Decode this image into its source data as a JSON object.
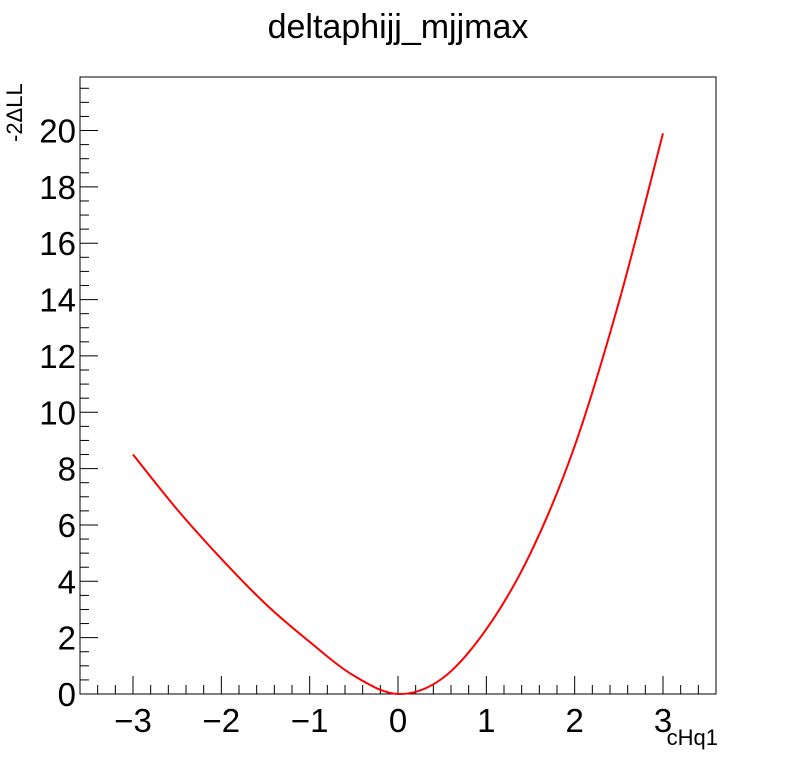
{
  "chart_data": {
    "type": "line",
    "title": "deltaphijj_mjjmax",
    "xlabel": "cHq1",
    "ylabel": "-2ΔLL",
    "xlim": [
      -3.6,
      3.6
    ],
    "ylim": [
      0,
      21.9
    ],
    "x_ticks": [
      -3,
      -2,
      -1,
      0,
      1,
      2,
      3
    ],
    "x_tick_labels": [
      "−3",
      "−2",
      "−1",
      "0",
      "1",
      "2",
      "3"
    ],
    "y_ticks": [
      0,
      2,
      4,
      6,
      8,
      10,
      12,
      14,
      16,
      18,
      20
    ],
    "y_tick_labels": [
      "0",
      "2",
      "4",
      "6",
      "8",
      "10",
      "12",
      "14",
      "16",
      "18",
      "20"
    ],
    "grid": false,
    "legend": "none",
    "series": [
      {
        "color": "#ff0000",
        "x": [
          -3.0,
          -2.5,
          -2.0,
          -1.5,
          -1.0,
          -0.5,
          0.0,
          0.5,
          1.0,
          1.5,
          2.0,
          2.5,
          3.0
        ],
        "y": [
          8.5,
          6.55,
          4.8,
          3.2,
          1.85,
          0.65,
          0.0,
          0.55,
          2.3,
          5.0,
          8.8,
          13.9,
          19.9
        ]
      }
    ]
  }
}
